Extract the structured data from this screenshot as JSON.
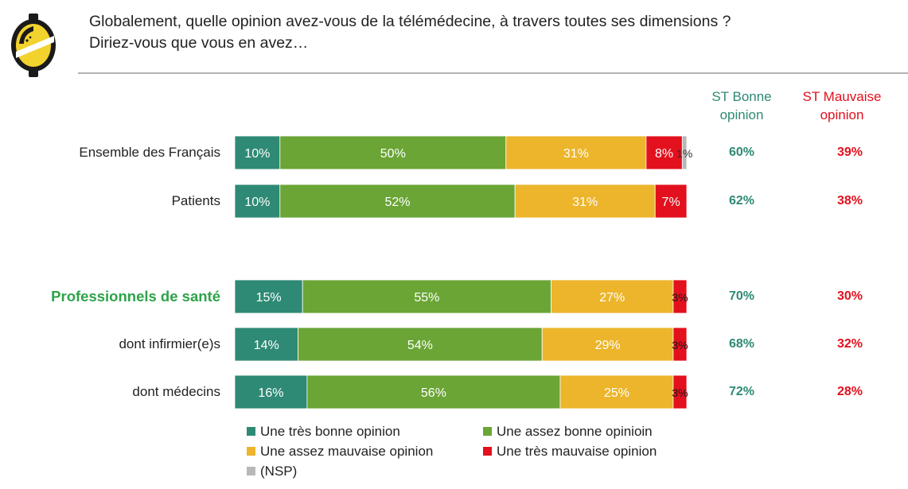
{
  "title_line1": "Globalement, quelle opinion avez-vous de la télémédecine, à travers toutes ses dimensions ?",
  "title_line2": "Diriez-vous que vous en avez…",
  "st_good_header": [
    "ST Bonne",
    "opinion"
  ],
  "st_bad_header": [
    "ST Mauvaise",
    "opinion"
  ],
  "colors": {
    "tres_bonne": "#2e8a74",
    "assez_bonne": "#6aa535",
    "assez_mauvaise": "#ecb52b",
    "tres_mauvaise": "#e3101e",
    "nsp": "#b8b8b8",
    "st_good": "#2e8a74",
    "st_bad": "#e3101e",
    "highlight_label": "#2ea34a"
  },
  "chart_data": {
    "type": "bar",
    "orientation": "horizontal",
    "stacked": true,
    "grid": false,
    "legend_position": "bottom",
    "categories": [
      "Ensemble des Français",
      "Patients",
      "Professionnels de santé",
      "dont infirmier(e)s",
      "dont médecins"
    ],
    "highlighted_category": "Professionnels de santé",
    "series": [
      {
        "name": "Une très bonne opinion",
        "key": "tres_bonne",
        "values": [
          10,
          10,
          15,
          14,
          16
        ],
        "labels": [
          "10%",
          "10%",
          "15%",
          "14%",
          "16%"
        ]
      },
      {
        "name": "Une assez bonne opinioin",
        "key": "assez_bonne",
        "values": [
          50,
          52,
          55,
          54,
          56
        ],
        "labels": [
          "50%",
          "52%",
          "55%",
          "54%",
          "56%"
        ]
      },
      {
        "name": "Une assez mauvaise opinion",
        "key": "assez_mauvaise",
        "values": [
          31,
          31,
          27,
          29,
          25
        ],
        "labels": [
          "31%",
          "31%",
          "27%",
          "29%",
          "25%"
        ]
      },
      {
        "name": "Une très mauvaise opinion",
        "key": "tres_mauvaise",
        "values": [
          8,
          7,
          3,
          3,
          3
        ],
        "labels": [
          "8%",
          "7%",
          "3%",
          "3%",
          "3%"
        ]
      },
      {
        "name": "(NSP)",
        "key": "nsp",
        "values": [
          1,
          0,
          0,
          0,
          0
        ],
        "labels": [
          "1%",
          "",
          "",
          "",
          ""
        ]
      }
    ],
    "st_bonne_opinion": [
      "60%",
      "62%",
      "70%",
      "68%",
      "72%"
    ],
    "st_mauvaise_opinion": [
      "39%",
      "38%",
      "30%",
      "32%",
      "28%"
    ]
  }
}
